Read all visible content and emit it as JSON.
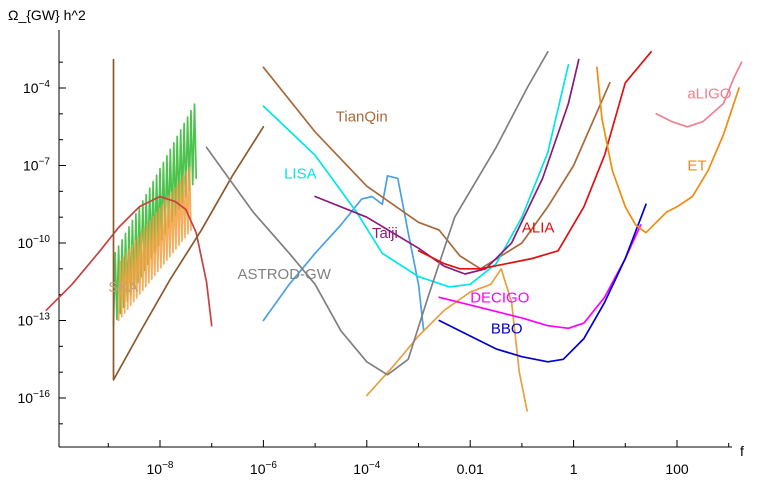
{
  "chart_data": {
    "type": "line",
    "title": "",
    "xlabel": "f",
    "ylabel": "Ω_{GW} h^2",
    "x_scale": "log10",
    "y_scale": "log10",
    "xlim_log10": [
      -10.5,
      3.7
    ],
    "ylim_log10": [
      -18,
      -2.2
    ],
    "x_ticks": [
      {
        "log": -8,
        "base": "10",
        "exp": "−8",
        "label": ""
      },
      {
        "log": -6,
        "base": "10",
        "exp": "−6",
        "label": ""
      },
      {
        "log": -4,
        "base": "10",
        "exp": "−4",
        "label": ""
      },
      {
        "log": -2,
        "base": "",
        "exp": "",
        "label": "0.01"
      },
      {
        "log": 0,
        "base": "",
        "exp": "",
        "label": "1"
      },
      {
        "log": 2,
        "base": "",
        "exp": "",
        "label": "100"
      }
    ],
    "y_ticks": [
      {
        "log": -4,
        "base": "10",
        "exp": "−4"
      },
      {
        "log": -7,
        "base": "10",
        "exp": "−7"
      },
      {
        "log": -10,
        "base": "10",
        "exp": "−10"
      },
      {
        "log": -13,
        "base": "10",
        "exp": "−13"
      },
      {
        "log": -16,
        "base": "10",
        "exp": "−16"
      }
    ],
    "series": [
      {
        "name": "SKA",
        "color": "#c8a070",
        "label_at": [
          -9.0,
          -11.9
        ],
        "points": []
      },
      {
        "name": "TianQin",
        "color": "#a8693a",
        "label_at": [
          -4.6,
          -5.3
        ],
        "points": [
          [
            -6.0,
            -3.2
          ],
          [
            -5.0,
            -5.7
          ],
          [
            -4.0,
            -7.8
          ],
          [
            -3.0,
            -9.2
          ],
          [
            -2.6,
            -9.5
          ],
          [
            -2.2,
            -10.5
          ],
          [
            -1.8,
            -11.0
          ],
          [
            -1.0,
            -10.0
          ],
          [
            -0.5,
            -8.6
          ],
          [
            0.0,
            -7.0
          ],
          [
            0.7,
            -3.8
          ]
        ]
      },
      {
        "name": "LISA",
        "color": "#00e6e6",
        "label_at": [
          -5.6,
          -7.5
        ],
        "points": [
          [
            -6.0,
            -4.7
          ],
          [
            -5.0,
            -6.6
          ],
          [
            -4.2,
            -8.8
          ],
          [
            -3.7,
            -10.4
          ],
          [
            -3.0,
            -11.3
          ],
          [
            -2.4,
            -11.7
          ],
          [
            -2.0,
            -11.6
          ],
          [
            -1.5,
            -10.8
          ],
          [
            -1.0,
            -9.0
          ],
          [
            -0.5,
            -6.5
          ],
          [
            -0.1,
            -3.1
          ]
        ]
      },
      {
        "name": "Taiji",
        "color": "#8b1a7a",
        "label_at": [
          -3.9,
          -9.8
        ],
        "points": [
          [
            -5.0,
            -8.2
          ],
          [
            -4.0,
            -9.0
          ],
          [
            -3.0,
            -10.2
          ],
          [
            -2.5,
            -10.9
          ],
          [
            -2.1,
            -11.2
          ],
          [
            -1.7,
            -11.0
          ],
          [
            -1.2,
            -10.0
          ],
          [
            -0.6,
            -7.5
          ],
          [
            -0.1,
            -4.6
          ],
          [
            0.1,
            -2.9
          ]
        ]
      },
      {
        "name": "ASTROD-GW",
        "color": "#808080",
        "label_at": [
          -6.5,
          -11.4
        ],
        "points": [
          [
            -7.1,
            -6.3
          ],
          [
            -6.2,
            -8.8
          ],
          [
            -5.5,
            -10.4
          ],
          [
            -5.0,
            -11.6
          ],
          [
            -4.5,
            -13.4
          ],
          [
            -4.0,
            -14.6
          ],
          [
            -3.6,
            -15.1
          ],
          [
            -3.2,
            -14.5
          ],
          [
            -2.8,
            -12.0
          ],
          [
            -2.3,
            -9.0
          ],
          [
            -1.5,
            -6.3
          ],
          [
            -0.9,
            -4.0
          ],
          [
            -0.5,
            -2.6
          ]
        ]
      },
      {
        "name": "ALIA",
        "color": "#e01010",
        "label_at": [
          -1.0,
          -9.6
        ],
        "points": [
          [
            -3.0,
            -10.3
          ],
          [
            -2.5,
            -10.8
          ],
          [
            -2.2,
            -11.0
          ],
          [
            -1.8,
            -11.0
          ],
          [
            -1.3,
            -10.8
          ],
          [
            -0.8,
            -10.6
          ],
          [
            -0.3,
            -10.3
          ],
          [
            0.2,
            -8.6
          ],
          [
            0.6,
            -6.6
          ],
          [
            1.0,
            -3.8
          ],
          [
            1.5,
            -2.6
          ]
        ]
      },
      {
        "name": "DECIGO",
        "color": "#ff00ff",
        "label_at": [
          -2.0,
          -12.3
        ],
        "points": [
          [
            -2.6,
            -12.1
          ],
          [
            -1.8,
            -12.5
          ],
          [
            -1.0,
            -12.9
          ],
          [
            -0.5,
            -13.2
          ],
          [
            -0.1,
            -13.3
          ],
          [
            0.2,
            -13.1
          ],
          [
            0.6,
            -12.1
          ],
          [
            1.0,
            -10.6
          ],
          [
            1.3,
            -9.3
          ]
        ]
      },
      {
        "name": "BBO",
        "color": "#0000cc",
        "label_at": [
          -1.6,
          -13.5
        ],
        "points": [
          [
            -2.6,
            -13.0
          ],
          [
            -2.0,
            -13.6
          ],
          [
            -1.5,
            -14.1
          ],
          [
            -1.0,
            -14.4
          ],
          [
            -0.5,
            -14.6
          ],
          [
            -0.2,
            -14.5
          ],
          [
            0.2,
            -13.7
          ],
          [
            0.6,
            -12.3
          ],
          [
            1.0,
            -10.6
          ],
          [
            1.4,
            -8.5
          ]
        ]
      },
      {
        "name": "ET",
        "color": "#f08c10",
        "label_at": [
          2.2,
          -7.2
        ],
        "points": [
          [
            0.45,
            -3.2
          ],
          [
            0.55,
            -5.2
          ],
          [
            0.75,
            -7.2
          ],
          [
            1.0,
            -8.6
          ],
          [
            1.2,
            -9.3
          ],
          [
            1.4,
            -9.6
          ],
          [
            1.6,
            -9.2
          ],
          [
            1.8,
            -8.8
          ],
          [
            2.0,
            -8.6
          ],
          [
            2.3,
            -8.2
          ],
          [
            2.6,
            -7.2
          ],
          [
            2.9,
            -5.8
          ],
          [
            3.2,
            -4.0
          ]
        ]
      },
      {
        "name": "aLIGO",
        "color": "#f08090",
        "label_at": [
          2.2,
          -4.4
        ],
        "points": [
          [
            1.6,
            -5.0
          ],
          [
            1.9,
            -5.3
          ],
          [
            2.2,
            -5.5
          ],
          [
            2.5,
            -5.3
          ],
          [
            2.9,
            -4.6
          ],
          [
            3.1,
            -3.6
          ],
          [
            3.25,
            -3.0
          ]
        ]
      }
    ],
    "unlabeled_series": [
      {
        "color": "#c84040",
        "points": [
          [
            -10.2,
            -12.6
          ],
          [
            -9.7,
            -11.6
          ],
          [
            -9.2,
            -10.4
          ],
          [
            -8.8,
            -9.4
          ],
          [
            -8.4,
            -8.6
          ],
          [
            -8.0,
            -8.2
          ],
          [
            -7.7,
            -8.4
          ],
          [
            -7.5,
            -8.7
          ],
          [
            -7.3,
            -9.6
          ],
          [
            -7.1,
            -11.5
          ],
          [
            -7.0,
            -13.2
          ]
        ]
      },
      {
        "color": "#8b5a2b",
        "points": [
          [
            -8.9,
            -2.9
          ],
          [
            -8.9,
            -15.3
          ],
          [
            -8.4,
            -13.5
          ],
          [
            -7.8,
            -11.4
          ],
          [
            -7.2,
            -9.5
          ],
          [
            -6.6,
            -7.4
          ],
          [
            -6.0,
            -5.5
          ]
        ]
      },
      {
        "color": "#4aa0e0",
        "points": [
          [
            -6.0,
            -13.0
          ],
          [
            -5.5,
            -11.6
          ],
          [
            -5.0,
            -10.4
          ],
          [
            -4.5,
            -9.3
          ],
          [
            -4.1,
            -8.3
          ],
          [
            -3.9,
            -8.2
          ],
          [
            -3.7,
            -8.5
          ],
          [
            -3.6,
            -7.4
          ],
          [
            -3.4,
            -7.5
          ],
          [
            -3.2,
            -9.6
          ],
          [
            -3.0,
            -11.6
          ],
          [
            -2.9,
            -13.4
          ]
        ]
      },
      {
        "color": "#e8a040",
        "points": [
          [
            -4.0,
            -15.9
          ],
          [
            -3.5,
            -14.8
          ],
          [
            -3.0,
            -13.6
          ],
          [
            -2.5,
            -12.6
          ],
          [
            -2.0,
            -11.9
          ],
          [
            -1.6,
            -11.6
          ],
          [
            -1.4,
            -11.0
          ],
          [
            -1.2,
            -12.3
          ],
          [
            -1.05,
            -15.0
          ],
          [
            -0.9,
            -16.5
          ]
        ]
      }
    ],
    "oscillating_bands": [
      {
        "color": "#2eb82e",
        "x_start": -8.9,
        "x_end": -7.3,
        "y_low_start": -13.2,
        "y_high_start": -10.5,
        "y_low_end": -7.5,
        "y_high_end": -4.5
      },
      {
        "color": "#f5a040",
        "x_start": -8.8,
        "x_end": -7.4,
        "y_low_start": -13.0,
        "y_high_start": -10.8,
        "y_low_end": -9.5,
        "y_high_end": -7.0
      }
    ]
  }
}
